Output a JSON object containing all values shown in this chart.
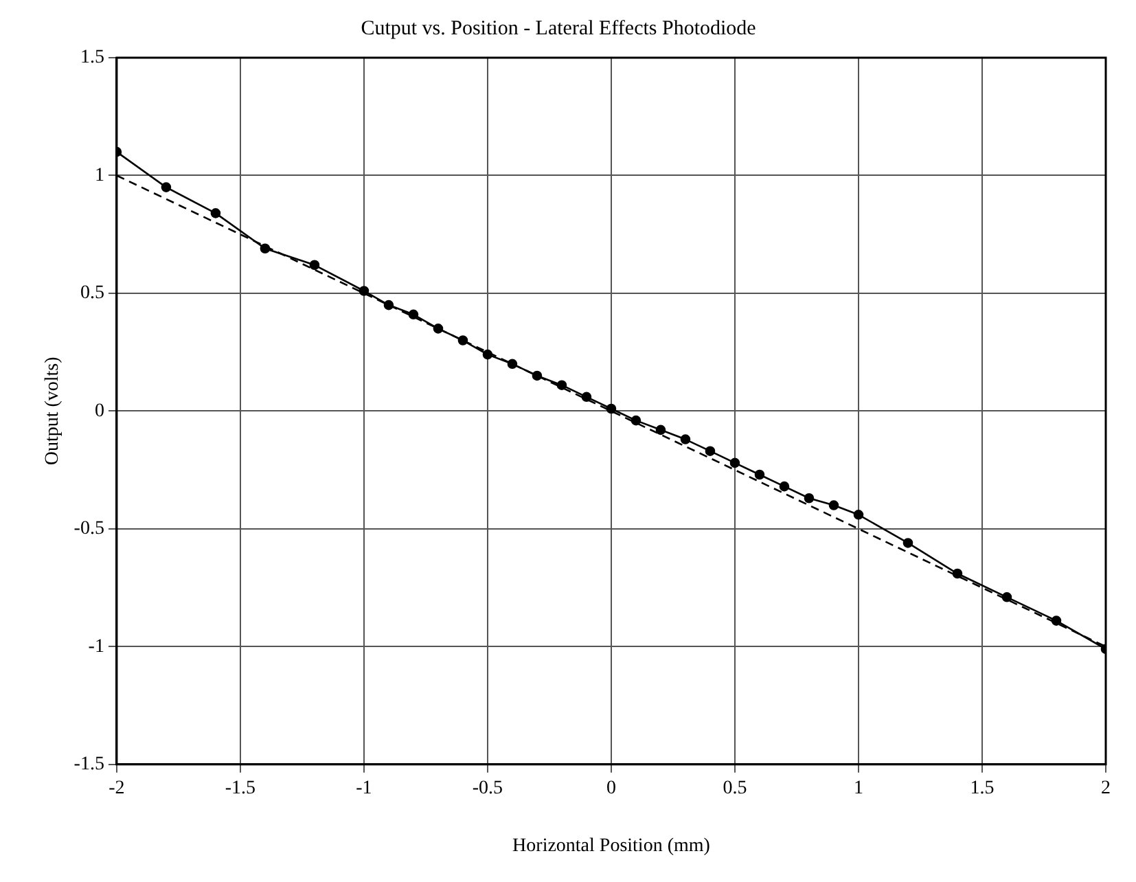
{
  "chart_data": {
    "type": "line",
    "title": "Cutput vs. Position - Lateral Effects Photodiode",
    "xlabel": "Horizontal Position (mm)",
    "ylabel": "Output (volts)",
    "xlim": [
      -2,
      2
    ],
    "xticks": [
      -2,
      -1.5,
      -1,
      -0.5,
      0,
      0.5,
      1,
      1.5,
      2
    ],
    "ylim": [
      -1.5,
      1.5
    ],
    "yticks": [
      -1.5,
      -1,
      -0.5,
      0,
      0.5,
      1,
      1.5
    ],
    "grid": true,
    "series": [
      {
        "color": "#000000",
        "marker": "circle",
        "line_style": "solid",
        "x": [
          -2,
          -1.8,
          -1.6,
          -1.4,
          -1.2,
          -1,
          -0.9,
          -0.8,
          -0.7,
          -0.6,
          -0.5,
          -0.4,
          -0.3,
          -0.2,
          -0.1,
          0,
          0.1,
          0.2,
          0.3,
          0.4,
          0.5,
          0.6,
          0.7,
          0.8,
          0.9,
          1,
          1.2,
          1.4,
          1.6,
          1.8,
          2
        ],
        "values": [
          1.1,
          0.95,
          0.84,
          0.69,
          0.62,
          0.51,
          0.45,
          0.41,
          0.35,
          0.3,
          0.24,
          0.2,
          0.15,
          0.11,
          0.06,
          0.01,
          -0.04,
          -0.08,
          -0.12,
          -0.17,
          -0.22,
          -0.27,
          -0.32,
          -0.37,
          -0.4,
          -0.44,
          -0.56,
          -0.69,
          -0.79,
          -0.89,
          -1.01
        ]
      },
      {
        "type": "line",
        "color": "#000000",
        "marker": "none",
        "line_style": "dashed",
        "x": [
          -2,
          2
        ],
        "values": [
          1,
          -1
        ]
      }
    ]
  }
}
